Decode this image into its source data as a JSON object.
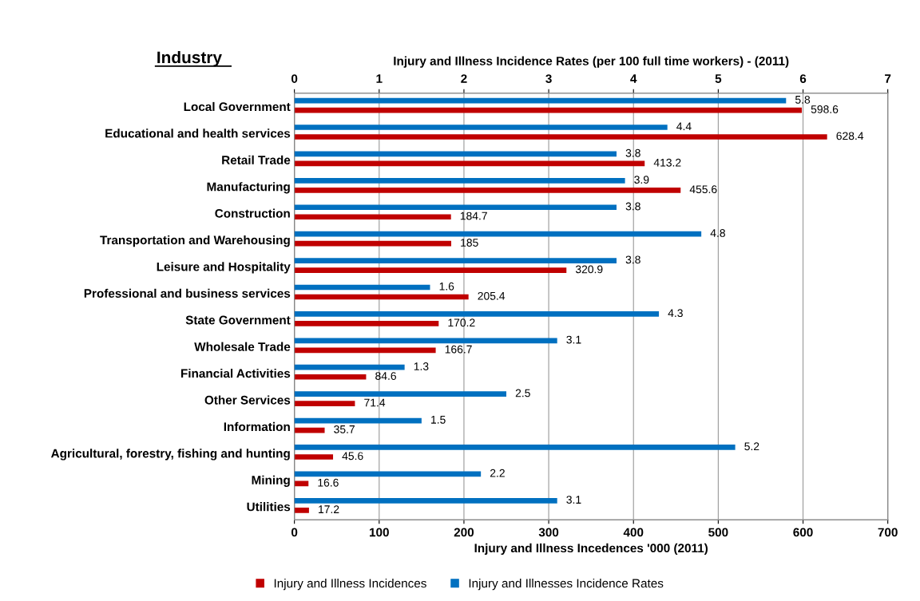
{
  "chart_data": {
    "type": "bar",
    "orientation": "horizontal",
    "ylabel": "Industry",
    "xlabel": "Injury and Illness Incedences '000 (2011)",
    "x2label": "Injury and Illness Incidence Rates (per 100 full time workers) - (2011)",
    "categories": [
      "Local Government",
      "Educational and health services",
      "Retail Trade",
      "Manufacturing",
      "Construction",
      "Transportation and Warehousing",
      "Leisure and Hospitality",
      "Professional and business services",
      "State Government",
      "Wholesale Trade",
      "Financial Activities",
      "Other Services",
      "Information",
      "Agricultural, forestry, fishing and hunting",
      "Mining",
      "Utilities"
    ],
    "series": [
      {
        "name": "Injury and Illness Incidences",
        "color": "#c00000",
        "values": [
          598.6,
          628.4,
          413.2,
          455.6,
          184.7,
          185,
          320.9,
          205.4,
          170.2,
          166.7,
          84.6,
          71.4,
          35.7,
          45.6,
          16.6,
          17.2
        ]
      },
      {
        "name": "Injury and Illnesses Incidence Rates",
        "color": "#0070c0",
        "axis": "x2",
        "values": [
          5.8,
          4.4,
          3.8,
          3.9,
          3.8,
          4.8,
          3.8,
          1.6,
          4.3,
          3.1,
          1.3,
          2.5,
          1.5,
          5.2,
          2.2,
          3.1
        ]
      }
    ],
    "xlim": [
      0,
      700
    ],
    "xticks": [
      0,
      100,
      200,
      300,
      400,
      500,
      600,
      700
    ],
    "x2lim": [
      0,
      7
    ],
    "x2ticks": [
      0,
      1,
      2,
      3,
      4,
      5,
      6,
      7
    ],
    "grid": "x",
    "legend": "bottom",
    "data_labels": true
  }
}
